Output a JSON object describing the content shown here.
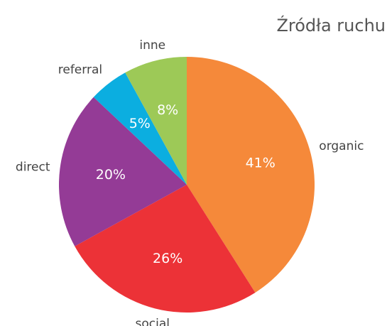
{
  "chart_data": {
    "type": "pie",
    "title": "Źródła ruchu",
    "categories": [
      "organic",
      "social",
      "direct",
      "referral",
      "inne"
    ],
    "values": [
      41,
      26,
      20,
      5,
      8
    ],
    "value_labels": [
      "41%",
      "26%",
      "20%",
      "5%",
      "8%"
    ],
    "colors": [
      "#f5893a",
      "#ec3237",
      "#943b96",
      "#0baee0",
      "#9dc957"
    ]
  }
}
